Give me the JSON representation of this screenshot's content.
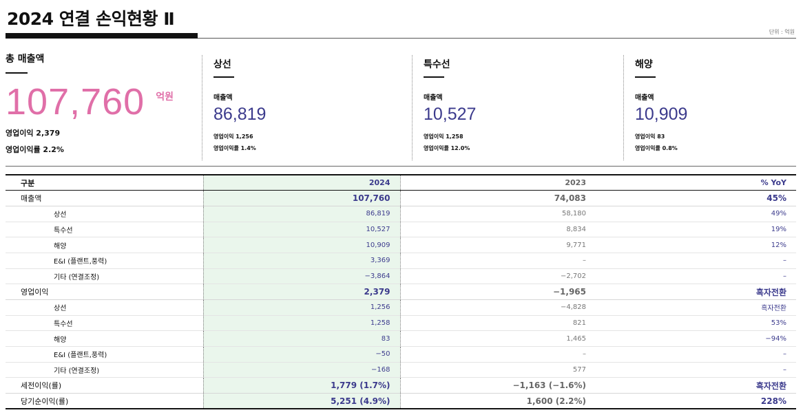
{
  "title": "2024 연결 손익현황 Ⅱ",
  "unit": "단위 : 억원",
  "total": {
    "heading": "총 매출액",
    "revenue": "107,760",
    "revenue_unit": "억원",
    "op_income": "영업이익 2,379",
    "op_margin": "영업이익률 2.2%"
  },
  "segments": [
    {
      "name": "상선",
      "sales_label": "매출액",
      "sales": "86,819",
      "op_income": "영업이익 1,256",
      "op_margin": "영업이익률 1.4%"
    },
    {
      "name": "특수선",
      "sales_label": "매출액",
      "sales": "10,527",
      "op_income": "영업이익 1,258",
      "op_margin": "영업이익률 12.0%"
    },
    {
      "name": "해양",
      "sales_label": "매출액",
      "sales": "10,909",
      "op_income": "영업이익 83",
      "op_margin": "영업이익률 0.8%"
    }
  ],
  "table": {
    "headers": [
      "구분",
      "2024",
      "2023",
      "% YoY"
    ],
    "rows": [
      [
        "매출액",
        "107,760",
        "74,083",
        "45%"
      ],
      [
        "상선",
        "86,819",
        "58,180",
        "49%"
      ],
      [
        "특수선",
        "10,527",
        "8,834",
        "19%"
      ],
      [
        "해양",
        "10,909",
        "9,771",
        "12%"
      ],
      [
        "E&I (플랜트,풍력)",
        "3,369",
        "–",
        "–"
      ],
      [
        "기타 (연결조정)",
        "−3,864",
        "−2,702",
        "–"
      ],
      [
        "영업이익",
        "2,379",
        "−1,965",
        "흑자전환"
      ],
      [
        "상선",
        "1,256",
        "−4,828",
        "흑자전환"
      ],
      [
        "특수선",
        "1,258",
        "821",
        "53%"
      ],
      [
        "해양",
        "83",
        "1,465",
        "−94%"
      ],
      [
        "E&I (플랜트,풍력)",
        "−50",
        "–",
        "–"
      ],
      [
        "기타 (연결조정)",
        "−168",
        "577",
        "–"
      ],
      [
        "세전이익(률)",
        "1,779 (1.7%)",
        "−1,163 (−1.6%)",
        "흑자전환"
      ],
      [
        "당기순이익(률)",
        "5,251 (4.9%)",
        "1,600 (2.2%)",
        "228%"
      ]
    ]
  },
  "colors": {
    "accent_pink": "#e06fa8",
    "navy": "#3b3a8c",
    "highlight": "#eaf6ec"
  }
}
